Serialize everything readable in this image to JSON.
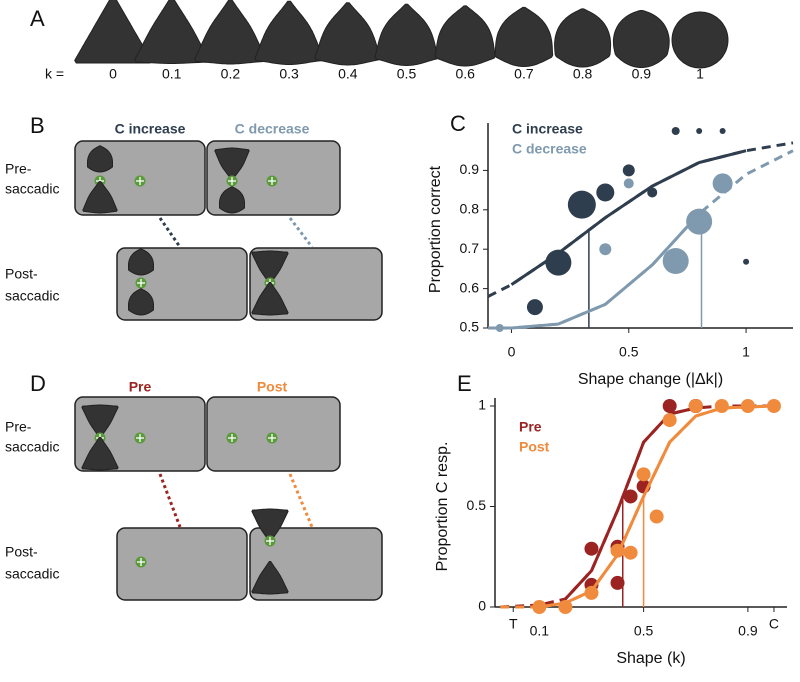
{
  "panel_a": {
    "label": "A",
    "k_label": "k =",
    "k_values": [
      0,
      0.1,
      0.2,
      0.3,
      0.4,
      0.5,
      0.6,
      0.7,
      0.8,
      0.9,
      1
    ]
  },
  "panel_b": {
    "label": "B",
    "columns": [
      "C increase",
      "C decrease"
    ],
    "rows": [
      [
        "Pre-",
        "saccadic"
      ],
      [
        "Post-",
        "saccadic"
      ]
    ]
  },
  "panel_d": {
    "label": "D",
    "columns": [
      "Pre",
      "Post"
    ],
    "rows": [
      [
        "Pre-",
        "saccadic"
      ],
      [
        "Post-",
        "saccadic"
      ]
    ]
  },
  "chart_data": [
    {
      "type": "scatter",
      "label": "C",
      "x_label": "Shape change (|Δk|)",
      "y_label": "Proportion correct",
      "xlim": [
        -0.1,
        1.2
      ],
      "ylim": [
        0.5,
        1.0
      ],
      "xticks": [
        0,
        0.5,
        1
      ],
      "yticks": [
        0.5,
        0.6,
        0.7,
        0.8,
        0.9
      ],
      "series": [
        {
          "name": "C increase",
          "color": "#2f3e4e",
          "x": [
            0.1,
            0.2,
            0.3,
            0.4,
            0.5,
            0.6,
            0.7,
            0.8,
            0.9,
            1.0
          ],
          "values": [
            0.553,
            0.666,
            0.813,
            0.844,
            0.9,
            0.844,
            1.0,
            1.0,
            1.0,
            0.668
          ],
          "sizes": [
            8,
            13,
            14,
            9,
            6,
            5,
            4,
            3,
            3,
            3
          ],
          "fit_x": [
            -0.1,
            0,
            0.2,
            0.4,
            0.6,
            0.8,
            1.0,
            1.2
          ],
          "fit_values": [
            0.58,
            0.61,
            0.69,
            0.78,
            0.86,
            0.92,
            0.95,
            0.97
          ],
          "threshold": 0.33
        },
        {
          "name": "C decrease",
          "color": "#7f9aae",
          "x": [
            -0.05,
            0.4,
            0.5,
            0.7,
            0.8,
            0.9
          ],
          "values": [
            0.5,
            0.7,
            0.867,
            0.67,
            0.77,
            0.867
          ],
          "sizes": [
            4,
            6,
            5,
            13,
            13,
            10
          ],
          "fit_x": [
            -0.1,
            0,
            0.2,
            0.4,
            0.6,
            0.8,
            1.0,
            1.2
          ],
          "fit_values": [
            0.5,
            0.5,
            0.51,
            0.56,
            0.66,
            0.79,
            0.89,
            0.95
          ],
          "threshold": 0.81
        }
      ]
    },
    {
      "type": "scatter",
      "label": "E",
      "x_label": "Shape (k)",
      "y_label": "Proportion C resp.",
      "xlim": [
        -0.07,
        1.05
      ],
      "ylim": [
        0,
        1
      ],
      "xticks": [
        {
          "value": 0,
          "label": "T"
        },
        0.1,
        0.5,
        0.9,
        {
          "value": 1,
          "label": "C"
        }
      ],
      "yticks": [
        0,
        0.5,
        1
      ],
      "series": [
        {
          "name": "Pre",
          "color": "#9b2423",
          "x": [
            0.3,
            0.3,
            0.4,
            0.4,
            0.45,
            0.5,
            0.6,
            0.7,
            0.7
          ],
          "values": [
            0.29,
            0.11,
            0.3,
            0.12,
            0.55,
            0.6,
            1,
            1,
            1
          ],
          "sizes": [
            7,
            7,
            7,
            7,
            7,
            7,
            7,
            7,
            7
          ],
          "fit_x": [
            -0.05,
            0.1,
            0.2,
            0.3,
            0.4,
            0.5,
            0.6,
            0.7,
            0.8,
            1.0
          ],
          "fit_values": [
            0,
            0.01,
            0.04,
            0.18,
            0.48,
            0.82,
            0.96,
            0.99,
            1,
            1
          ],
          "threshold": 0.42
        },
        {
          "name": "Post",
          "color": "#f08a3c",
          "x": [
            0.1,
            0.2,
            0.3,
            0.4,
            0.45,
            0.5,
            0.55,
            0.6,
            0.7,
            0.8,
            0.9,
            1.0
          ],
          "values": [
            0,
            0,
            0.07,
            0.28,
            0.27,
            0.66,
            0.45,
            0.93,
            1,
            1,
            1,
            1
          ],
          "sizes": [
            7,
            7,
            7,
            7,
            7,
            7,
            7,
            7,
            7,
            7,
            7,
            7
          ],
          "fit_x": [
            -0.05,
            0.1,
            0.2,
            0.3,
            0.4,
            0.5,
            0.6,
            0.7,
            0.8,
            1.0
          ],
          "fit_values": [
            0,
            0,
            0.02,
            0.08,
            0.26,
            0.55,
            0.82,
            0.95,
            0.99,
            1
          ],
          "threshold": 0.5
        }
      ]
    }
  ]
}
